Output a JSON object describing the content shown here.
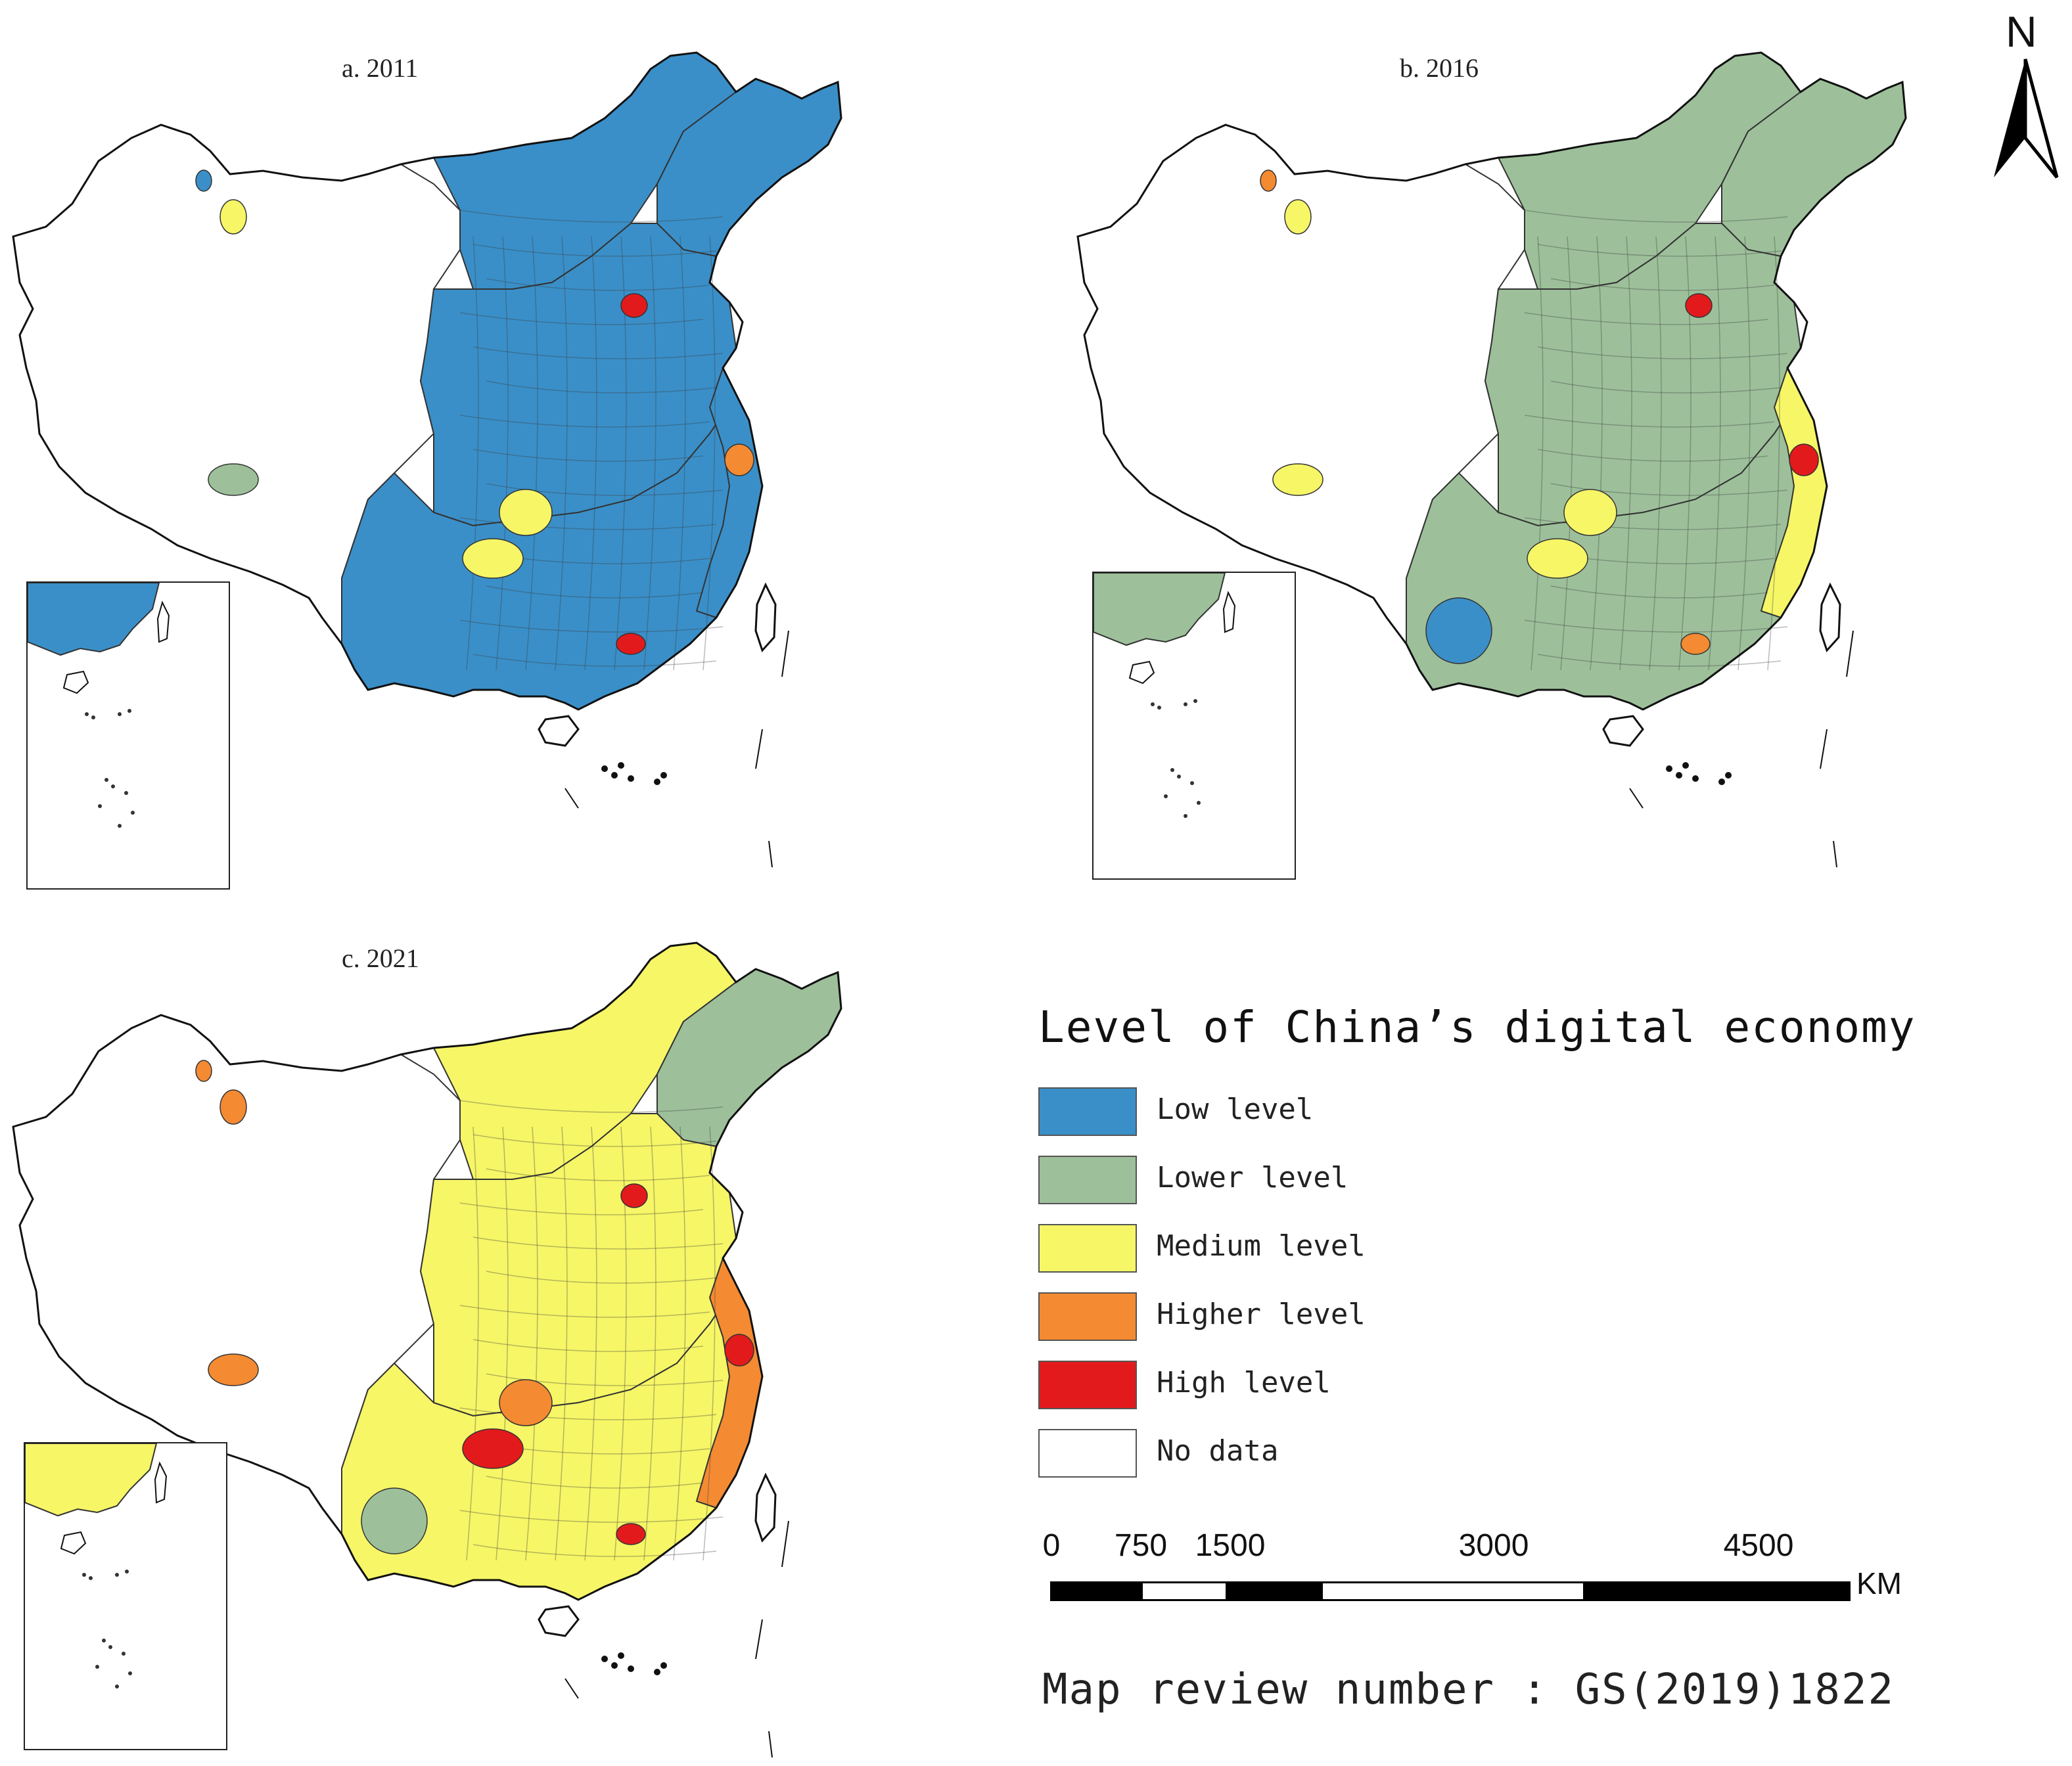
{
  "maps": [
    {
      "id": "a",
      "title": "a. 2011",
      "colors": {
        "west": "white",
        "north": "blue",
        "northeast": "blue",
        "central": "blue",
        "south": "blue",
        "east_coast": "blue"
      },
      "highlights": [
        {
          "region": "beijing",
          "level": "high"
        },
        {
          "region": "shanghai",
          "level": "higher"
        },
        {
          "region": "guangzhou",
          "level": "high"
        },
        {
          "region": "xinjiang_spot",
          "level": "medium"
        },
        {
          "region": "xinjiang_spot2",
          "level": "low"
        },
        {
          "region": "tibet_spot",
          "level": "lower"
        },
        {
          "region": "hubei",
          "level": "medium"
        },
        {
          "region": "sichuan",
          "level": "medium"
        }
      ]
    },
    {
      "id": "b",
      "title": "b. 2016",
      "colors": {
        "west": "white",
        "north": "lower",
        "northeast": "lower",
        "central": "lower",
        "south": "lower",
        "east_coast": "medium"
      },
      "highlights": [
        {
          "region": "beijing",
          "level": "high"
        },
        {
          "region": "shanghai",
          "level": "high"
        },
        {
          "region": "guangzhou",
          "level": "higher"
        },
        {
          "region": "xinjiang_spot",
          "level": "medium"
        },
        {
          "region": "xinjiang_spot2",
          "level": "higher"
        },
        {
          "region": "tibet_spot",
          "level": "medium"
        },
        {
          "region": "hubei",
          "level": "medium"
        },
        {
          "region": "sichuan",
          "level": "medium"
        },
        {
          "region": "yunnan",
          "level": "low"
        }
      ]
    },
    {
      "id": "c",
      "title": "c. 2021",
      "colors": {
        "west": "white",
        "north": "medium",
        "northeast": "lower",
        "central": "medium",
        "south": "medium",
        "east_coast": "higher"
      },
      "highlights": [
        {
          "region": "beijing",
          "level": "high"
        },
        {
          "region": "shanghai",
          "level": "high"
        },
        {
          "region": "guangzhou",
          "level": "high"
        },
        {
          "region": "xinjiang_spot",
          "level": "higher"
        },
        {
          "region": "xinjiang_spot2",
          "level": "higher"
        },
        {
          "region": "tibet_spot",
          "level": "higher"
        },
        {
          "region": "hubei",
          "level": "higher"
        },
        {
          "region": "sichuan",
          "level": "high"
        },
        {
          "region": "yunnan",
          "level": "lower"
        }
      ]
    }
  ],
  "legend": {
    "title": "Level of China’s digital economy",
    "items": [
      {
        "key": "low",
        "label": "Low level",
        "color": "#3a8fc8"
      },
      {
        "key": "lower",
        "label": "Lower level",
        "color": "#9dc09a"
      },
      {
        "key": "medium",
        "label": "Medium level",
        "color": "#f6f667"
      },
      {
        "key": "higher",
        "label": "Higher level",
        "color": "#f48a32"
      },
      {
        "key": "high",
        "label": "High level",
        "color": "#e31a1c"
      },
      {
        "key": "none",
        "label": "No data",
        "color": "#ffffff"
      }
    ]
  },
  "scale": {
    "ticks": [
      "0",
      "750",
      "1500",
      "3000",
      "4500"
    ],
    "unit": "KM"
  },
  "north_arrow": {
    "label": "N",
    "icon": "north-arrow-icon"
  },
  "review_number": "Map review number : GS(2019)1822"
}
